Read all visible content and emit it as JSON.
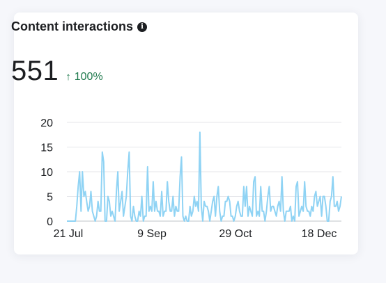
{
  "card": {
    "title": "Content interactions",
    "info_icon": "info-icon",
    "metric_value": "551",
    "metric_change": "100%",
    "change_icon": "arrow-up-icon",
    "accent_positive": "#1f7a4d"
  },
  "chart_data": {
    "type": "line",
    "ylim": [
      0,
      20
    ],
    "yticks": [
      "0",
      "5",
      "10",
      "15",
      "20"
    ],
    "xticks": [
      "21 Jul",
      "9 Sep",
      "29 Oct",
      "18 Dec"
    ],
    "grid": true,
    "line_color": "#8fd3f4",
    "series": [
      {
        "values": [
          0,
          0,
          0,
          0,
          0,
          0,
          0,
          3,
          7,
          10,
          2,
          10,
          5,
          6,
          4,
          2,
          3,
          6,
          2,
          1,
          0,
          1,
          4,
          2,
          2,
          14,
          12,
          0,
          0,
          5,
          4,
          1,
          2,
          1,
          0,
          6,
          10,
          2,
          4,
          6,
          1,
          3,
          5,
          10,
          14,
          1,
          0,
          3,
          1,
          0,
          0,
          2,
          1,
          5,
          0,
          1,
          1,
          11,
          2,
          3,
          2,
          8,
          2,
          4,
          2,
          2,
          1,
          6,
          1,
          2,
          2,
          8,
          4,
          2,
          2,
          5,
          1,
          3,
          2,
          2,
          9,
          13,
          1,
          0,
          1,
          0,
          0,
          3,
          1,
          2,
          5,
          3,
          4,
          2,
          18,
          3,
          0,
          4,
          3,
          3,
          2,
          0,
          2,
          4,
          5,
          1,
          5,
          7,
          2,
          0,
          1,
          1,
          4,
          4,
          5,
          4,
          1,
          1,
          0,
          1,
          3,
          4,
          2,
          1,
          1,
          7,
          3,
          7,
          1,
          3,
          2,
          1,
          8,
          9,
          1,
          2,
          1,
          7,
          2,
          2,
          0,
          2,
          5,
          7,
          2,
          3,
          3,
          2,
          1,
          3,
          4,
          2,
          9,
          2,
          0,
          2,
          2,
          2,
          3,
          0,
          1,
          0,
          7,
          8,
          1,
          2,
          3,
          2,
          8,
          3,
          2,
          2,
          1,
          3,
          2,
          5,
          6,
          3,
          4,
          5,
          1,
          5,
          5,
          3,
          0,
          0,
          4,
          5,
          9,
          3,
          3,
          4,
          2,
          3,
          5
        ]
      }
    ]
  }
}
